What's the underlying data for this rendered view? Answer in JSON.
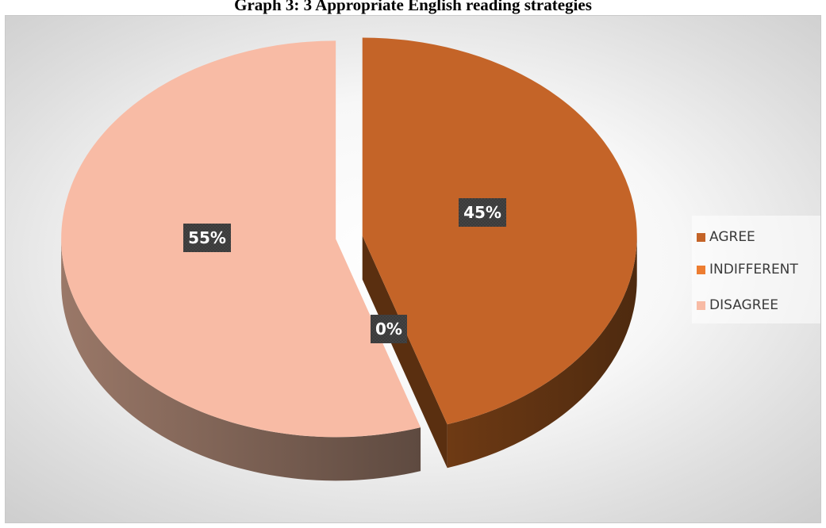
{
  "chart_data": {
    "type": "pie",
    "title": "Graph 3: 3 Appropriate English reading strategies",
    "categories": [
      "AGREE",
      "INDIFFERENT",
      "DISAGREE"
    ],
    "values": [
      45,
      0,
      55
    ],
    "data_labels": [
      "45%",
      "0%",
      "55%"
    ],
    "colors": [
      "#c46428",
      "#ed7d31",
      "#f8bba5"
    ],
    "legend_position": "right",
    "style": "3d-exploded"
  }
}
